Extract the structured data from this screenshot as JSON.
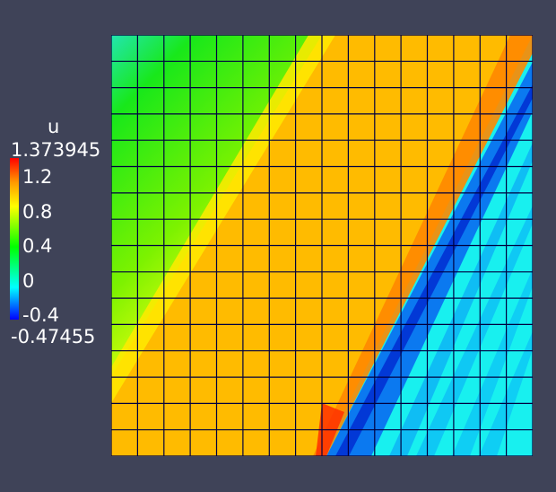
{
  "field": {
    "name": "u",
    "range_max": "1.373945",
    "range_min": "-0.47455",
    "ticks": [
      "1.2",
      "0.8",
      "0.4",
      "0",
      "-0.4"
    ]
  },
  "mesh": {
    "rows": 16,
    "cols": 16
  },
  "colors": {
    "background": "#3f4358",
    "grid_line": "#000040",
    "colormap": [
      "#0000ff",
      "#00ffff",
      "#00ff00",
      "#ffff00",
      "#ff0000"
    ]
  }
}
